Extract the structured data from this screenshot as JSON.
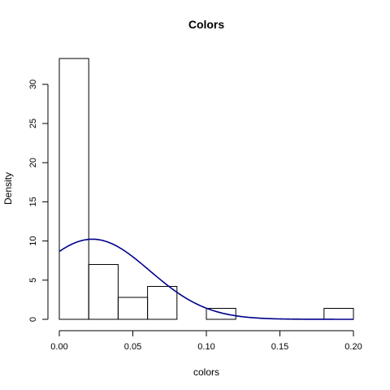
{
  "chart_data": {
    "type": "histogram",
    "title": "Colors",
    "xlabel": "colors",
    "ylabel": "Density",
    "xlim": [
      0,
      0.2
    ],
    "ylim": [
      0,
      33.3
    ],
    "grid": false,
    "bins": [
      {
        "x0": 0.0,
        "x1": 0.02,
        "density": 33.3
      },
      {
        "x0": 0.02,
        "x1": 0.04,
        "density": 7.0
      },
      {
        "x0": 0.04,
        "x1": 0.06,
        "density": 2.8
      },
      {
        "x0": 0.06,
        "x1": 0.08,
        "density": 4.2
      },
      {
        "x0": 0.08,
        "x1": 0.1,
        "density": 0.0
      },
      {
        "x0": 0.1,
        "x1": 0.12,
        "density": 1.4
      },
      {
        "x0": 0.12,
        "x1": 0.14,
        "density": 0.0
      },
      {
        "x0": 0.14,
        "x1": 0.16,
        "density": 0.0
      },
      {
        "x0": 0.16,
        "x1": 0.18,
        "density": 0.0
      },
      {
        "x0": 0.18,
        "x1": 0.2,
        "density": 1.4
      }
    ],
    "density_curve": {
      "distribution": "normal",
      "mean": 0.0225,
      "sd": 0.039,
      "color": "#00008B"
    },
    "x_ticks": [
      {
        "value": 0.0,
        "label": "0.00"
      },
      {
        "value": 0.05,
        "label": "0.05"
      },
      {
        "value": 0.1,
        "label": "0.10"
      },
      {
        "value": 0.15,
        "label": "0.15"
      },
      {
        "value": 0.2,
        "label": "0.20"
      }
    ],
    "y_ticks": [
      {
        "value": 0,
        "label": "0"
      },
      {
        "value": 5,
        "label": "5"
      },
      {
        "value": 10,
        "label": "10"
      },
      {
        "value": 15,
        "label": "15"
      },
      {
        "value": 20,
        "label": "20"
      },
      {
        "value": 25,
        "label": "25"
      },
      {
        "value": 30,
        "label": "30"
      }
    ]
  }
}
